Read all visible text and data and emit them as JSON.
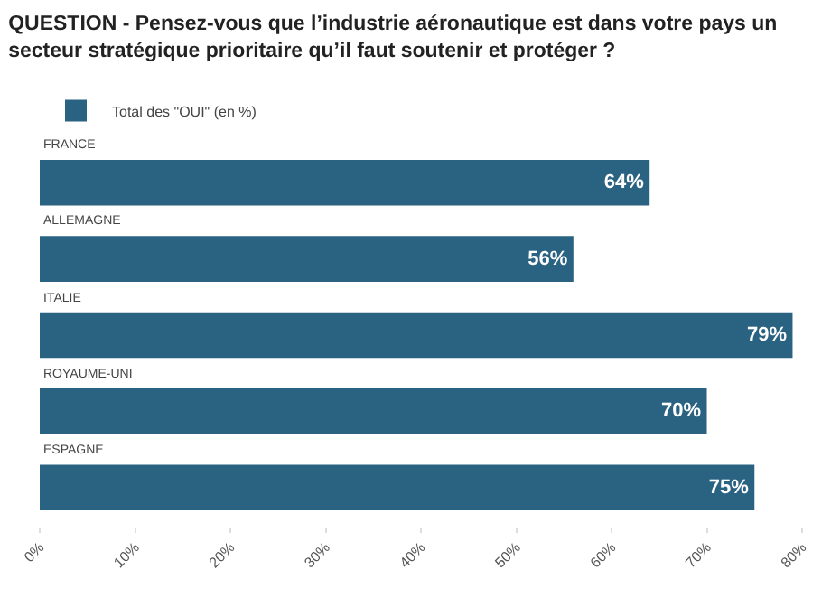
{
  "chart_data": {
    "type": "bar",
    "orientation": "horizontal",
    "title": "QUESTION - Pensez-vous que l’industrie aéronautique est dans votre pays un secteur stratégique prioritaire qu’il faut soutenir et protéger ?",
    "categories": [
      "FRANCE",
      "ALLEMAGNE",
      "ITALIE",
      "ROYAUME-UNI",
      "ESPAGNE"
    ],
    "series": [
      {
        "name": "Total des \"OUI\" (en %)",
        "color": "#2a6282",
        "values": [
          64,
          56,
          79,
          70,
          75
        ],
        "value_labels": [
          "64%",
          "56%",
          "79%",
          "70%",
          "75%"
        ]
      }
    ],
    "xlim": [
      0,
      80
    ],
    "xticks": [
      {
        "value": 0,
        "label": "0%"
      },
      {
        "value": 10,
        "label": "10%"
      },
      {
        "value": 20,
        "label": "20%"
      },
      {
        "value": 30,
        "label": "30%"
      },
      {
        "value": 40,
        "label": "40%"
      },
      {
        "value": 50,
        "label": "50%"
      },
      {
        "value": 60,
        "label": "60%"
      },
      {
        "value": 70,
        "label": "70%"
      },
      {
        "value": 80,
        "label": "80%"
      }
    ],
    "legend": "top left",
    "grid": false
  }
}
